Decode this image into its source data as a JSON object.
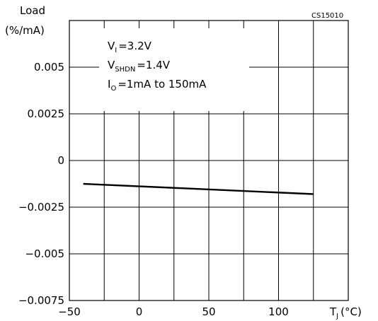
{
  "chart_data": {
    "type": "line",
    "ylabel_line1": "Load",
    "ylabel_line2": "(%/mA)",
    "xlabel_main": "T",
    "xlabel_sub": "J",
    "xlabel_unit": "(°C)",
    "figure_id": "CS15010",
    "xlim": [
      -50,
      150
    ],
    "ylim": [
      -0.0075,
      0.0075
    ],
    "x_ticks": [
      -50,
      0,
      50,
      100
    ],
    "x_tick_labels": [
      "−50",
      "0",
      "50",
      "100"
    ],
    "y_ticks": [
      -0.0075,
      -0.005,
      -0.0025,
      0,
      0.0025,
      0.005
    ],
    "y_tick_labels": [
      "−0.0075",
      "−0.005",
      "−0.0025",
      "0",
      "0.0025",
      "0.005"
    ],
    "grid": true,
    "series": [
      {
        "x": [
          -40,
          125
        ],
        "y": [
          -0.00125,
          -0.0018
        ]
      }
    ],
    "annotations": [
      {
        "main": "V",
        "sub": "I",
        "rest": "=3.2V"
      },
      {
        "main": "V",
        "sub": "SHDN",
        "rest": "=1.4V"
      },
      {
        "main": "I",
        "sub": "O",
        "rest": "=1mA  to  150mA"
      }
    ]
  }
}
